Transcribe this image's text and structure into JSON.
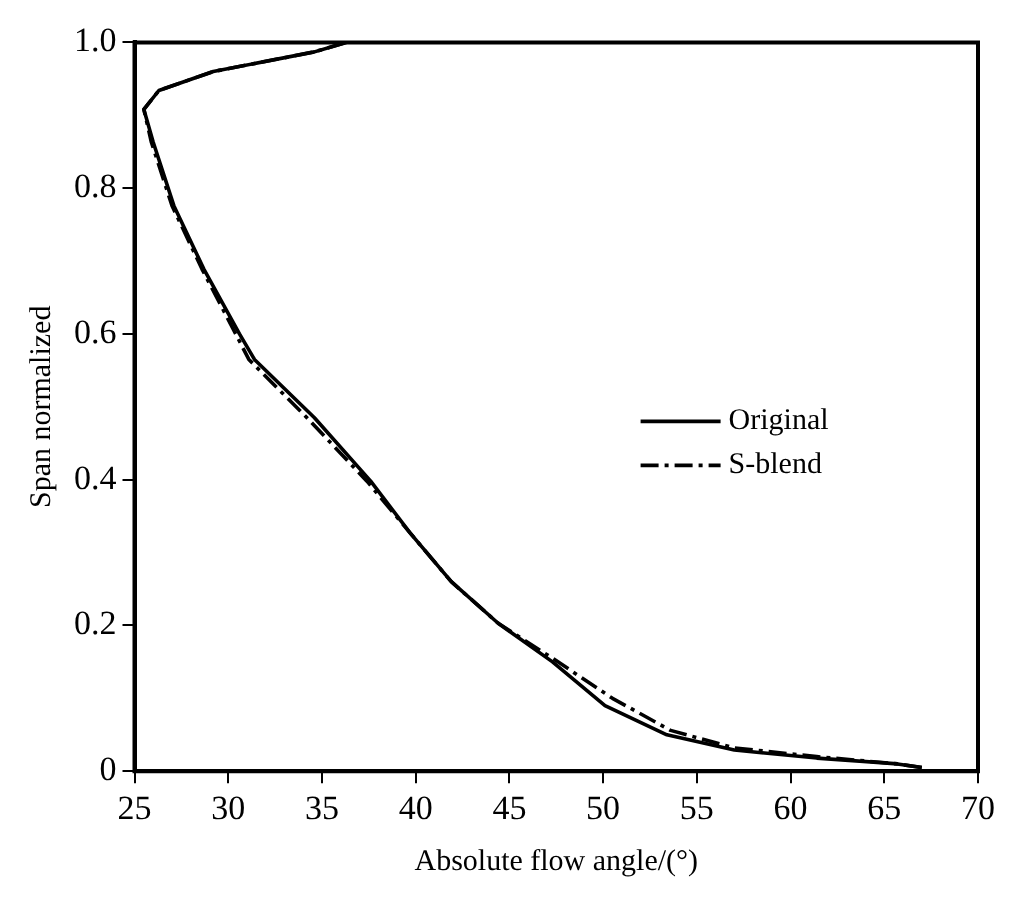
{
  "chart_data": {
    "type": "line",
    "xlabel": "Absolute flow angle/(°)",
    "ylabel": "Span normalized",
    "xlim": [
      25,
      70
    ],
    "xticks": [
      25,
      30,
      35,
      40,
      45,
      50,
      55,
      60,
      65,
      70
    ],
    "ylim": [
      0,
      1
    ],
    "yticks": [
      0,
      0.2,
      0.4,
      0.6,
      0.8,
      {
        "value": 1,
        "label": "1.0"
      }
    ],
    "grid": false,
    "legend": "right",
    "marker": "none",
    "series": [
      {
        "name": "Original",
        "color": "#000000",
        "line_style": "solid",
        "x": [
          67,
          65.7,
          61.4,
          57,
          53.4,
          50.1,
          47.3,
          44.4,
          41.9,
          39.7,
          37.6,
          34.6,
          31.4,
          30.6,
          28.7,
          27.1,
          26,
          25.5,
          26.3,
          29.2,
          34.6,
          36.3
        ],
        "values": [
          0.005,
          0.01,
          0.018,
          0.029,
          0.05,
          0.09,
          0.15,
          0.203,
          0.26,
          0.327,
          0.398,
          0.485,
          0.565,
          0.6,
          0.689,
          0.776,
          0.863,
          0.908,
          0.934,
          0.96,
          0.987,
          1
        ]
      },
      {
        "name": "S-blend",
        "color": "#000000",
        "line_style": "dashdot",
        "x": [
          67,
          65.7,
          61.4,
          57,
          53.6,
          50.5,
          47.3,
          44.4,
          41.9,
          39.7,
          37.4,
          34.2,
          31.1,
          30.4,
          28.6,
          27,
          25.9,
          25.5,
          26.3,
          29.2,
          34.6,
          36.3
        ],
        "values": [
          0.005,
          0.01,
          0.02,
          0.032,
          0.056,
          0.1,
          0.155,
          0.203,
          0.26,
          0.327,
          0.398,
          0.485,
          0.565,
          0.6,
          0.689,
          0.776,
          0.863,
          0.908,
          0.934,
          0.96,
          0.987,
          1
        ]
      }
    ]
  }
}
